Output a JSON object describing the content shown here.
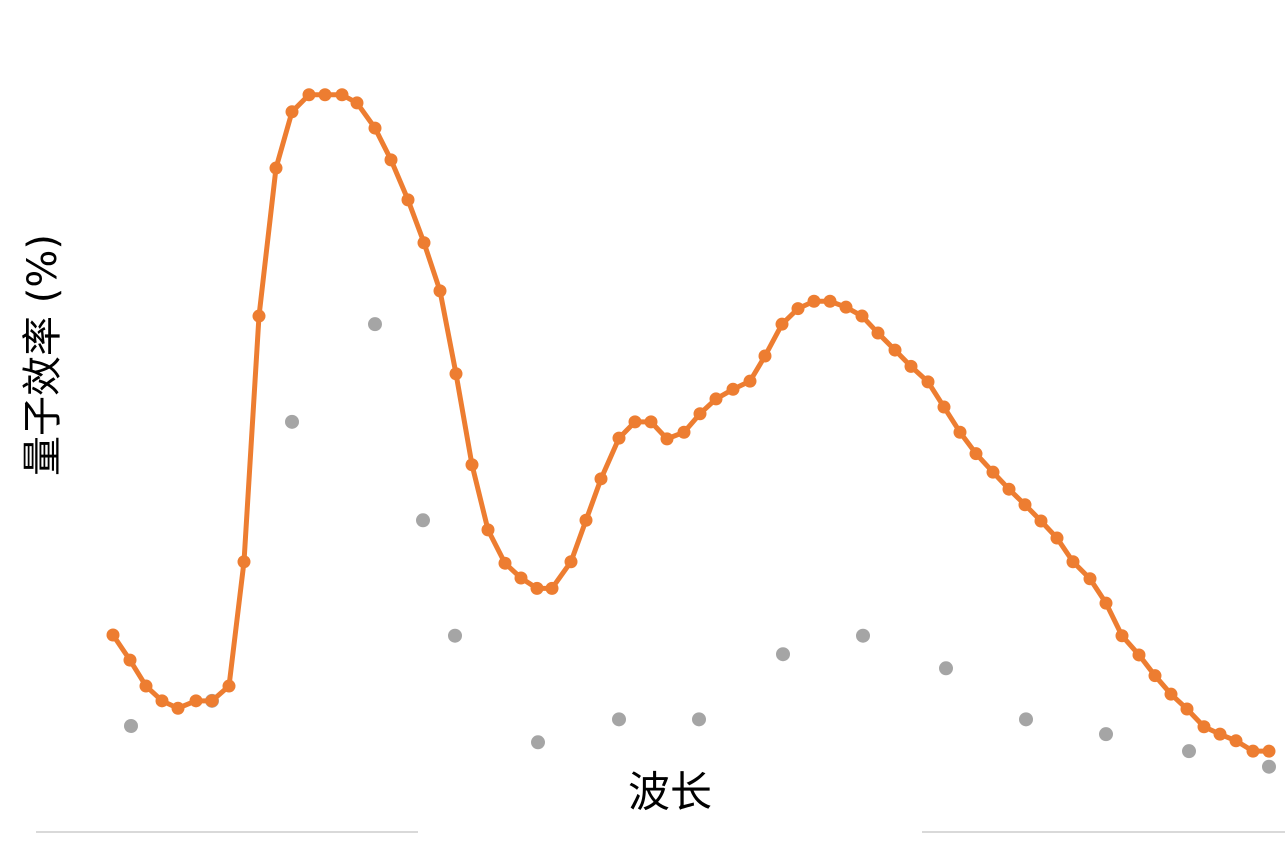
{
  "chart_data": {
    "type": "line",
    "x_label": "波长",
    "y_label": "量子效率 (%)",
    "xlim": [
      0,
      1185
    ],
    "ylim": [
      0,
      100
    ],
    "series": [
      {
        "type": "line",
        "color": "#ed7d31",
        "x": [
          13,
          30,
          46,
          62,
          78,
          96,
          112,
          129,
          144,
          159,
          176,
          192,
          209,
          225,
          242,
          257,
          275,
          291,
          308,
          324,
          340,
          356,
          372,
          388,
          405,
          421,
          437,
          452,
          471,
          486,
          501,
          519,
          535,
          551,
          567,
          584,
          600,
          616,
          633,
          650,
          665,
          682,
          698,
          714,
          730,
          746,
          762,
          778,
          795,
          811,
          828,
          844,
          860,
          876,
          893,
          909,
          925,
          941,
          957,
          973,
          990,
          1006,
          1022,
          1039,
          1055,
          1071,
          1087,
          1104,
          1120,
          1136,
          1153,
          1169
        ],
        "values": [
          22.3,
          18.9,
          15.4,
          13.4,
          12.4,
          13.4,
          13.4,
          15.4,
          32.2,
          65.4,
          85.4,
          93,
          95.3,
          95.3,
          95.3,
          94.2,
          90.8,
          86.5,
          81.1,
          75.3,
          68.8,
          57.6,
          45.3,
          36.5,
          32,
          30,
          28.6,
          28.6,
          32.2,
          37.8,
          43.4,
          48.9,
          51.1,
          51.1,
          48.8,
          49.7,
          52.2,
          54.2,
          55.5,
          56.6,
          60,
          64.3,
          66.4,
          67.4,
          67.4,
          66.6,
          65.4,
          63.1,
          60.8,
          58.6,
          56.5,
          53.1,
          49.7,
          46.8,
          44.3,
          42,
          39.9,
          37.7,
          35.4,
          32.2,
          29.9,
          26.6,
          22.2,
          19.6,
          16.8,
          14.3,
          12.3,
          9.9,
          8.9,
          8,
          6.6,
          6.6
        ]
      },
      {
        "type": "scatter",
        "color": "#a5a5a5",
        "x": [
          31,
          112,
          192,
          275,
          323,
          355,
          438,
          519,
          599,
          683,
          763,
          846,
          926,
          1006,
          1089,
          1169
        ],
        "values": [
          10,
          13.4,
          51.1,
          64.3,
          37.8,
          22.2,
          7.8,
          10.9,
          10.9,
          19.7,
          22.2,
          17.8,
          10.9,
          8.9,
          6.6,
          4.5
        ]
      }
    ]
  }
}
